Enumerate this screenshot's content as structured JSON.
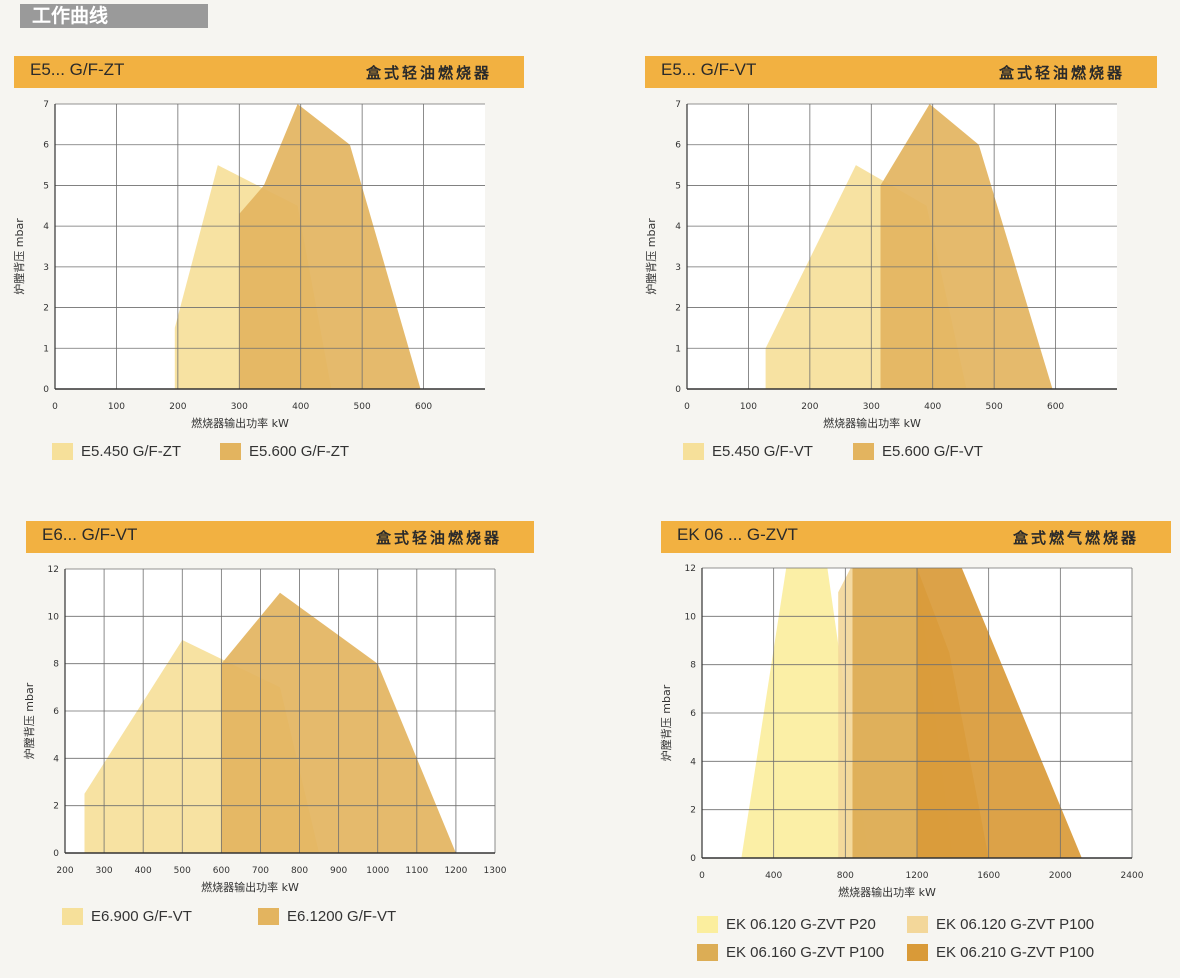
{
  "page_title": "工作曲线",
  "colors": {
    "banner": "#f2b141",
    "light_yellow": "#fbee9e",
    "pale_yellow": "#f6e09a",
    "light_gold": "#efd28b",
    "medium_gold": "#e3b45f",
    "dark_gold": "#dca74a"
  },
  "panels": [
    {
      "model": "E5... G/F-ZT",
      "type": "盒式轻油燃烧器",
      "legend": [
        {
          "name": "E5.450 G/F-ZT",
          "color": "#f6e09a"
        },
        {
          "name": "E5.600 G/F-ZT",
          "color": "#e3b45f"
        }
      ]
    },
    {
      "model": "E5... G/F-VT",
      "type": "盒式轻油燃烧器",
      "legend": [
        {
          "name": "E5.450 G/F-VT",
          "color": "#f6e09a"
        },
        {
          "name": "E5.600 G/F-VT",
          "color": "#e3b45f"
        }
      ]
    },
    {
      "model": "E6... G/F-VT",
      "type": "盒式轻油燃烧器",
      "legend": [
        {
          "name": "E6.900 G/F-VT",
          "color": "#f6e09a"
        },
        {
          "name": "E6.1200 G/F-VT",
          "color": "#e3b45f"
        }
      ]
    },
    {
      "model": "EK 06 ... G-ZVT",
      "type": "盒式燃气燃烧器",
      "legend": [
        {
          "name": "EK 06.120 G-ZVT P20",
          "color": "#fbee9e"
        },
        {
          "name": "EK 06.120 G-ZVT P100",
          "color": "#f3d79a"
        },
        {
          "name": "EK 06.160 G-ZVT P100",
          "color": "#dcad55"
        },
        {
          "name": "EK 06.210 G-ZVT P100",
          "color": "#d99a38"
        }
      ]
    }
  ],
  "chart_data": [
    {
      "type": "area",
      "xlabel": "燃烧器输出功率 kW",
      "ylabel": "炉膛背压 mbar",
      "xlim": [
        0,
        700
      ],
      "ylim": [
        0,
        7
      ],
      "xticks": [
        0,
        100,
        200,
        300,
        400,
        500,
        600
      ],
      "yticks": [
        0,
        1,
        2,
        3,
        4,
        5,
        6,
        7
      ],
      "grid": true,
      "series": [
        {
          "name": "E5.450 G/F-ZT",
          "color": "#f6e09a",
          "points": [
            [
              195,
              0
            ],
            [
              195,
              1.5
            ],
            [
              265,
              5.5
            ],
            [
              395,
              4.5
            ],
            [
              450,
              0
            ]
          ]
        },
        {
          "name": "E5.600 G/F-ZT",
          "color": "#e3b45f",
          "points": [
            [
              300,
              0
            ],
            [
              300,
              4.3
            ],
            [
              340,
              5
            ],
            [
              395,
              7
            ],
            [
              480,
              6
            ],
            [
              595,
              0
            ]
          ]
        }
      ]
    },
    {
      "type": "area",
      "xlabel": "燃烧器输出功率 kW",
      "ylabel": "炉膛背压 mbar",
      "xlim": [
        0,
        700
      ],
      "ylim": [
        0,
        7
      ],
      "xticks": [
        0,
        100,
        200,
        300,
        400,
        500,
        600
      ],
      "yticks": [
        0,
        1,
        2,
        3,
        4,
        5,
        6,
        7
      ],
      "grid": true,
      "series": [
        {
          "name": "E5.450 G/F-VT",
          "color": "#f6e09a",
          "points": [
            [
              128,
              0
            ],
            [
              128,
              1
            ],
            [
              275,
              5.5
            ],
            [
              390,
              4.5
            ],
            [
              455,
              0
            ]
          ]
        },
        {
          "name": "E5.600 G/F-VT",
          "color": "#e3b45f",
          "points": [
            [
              315,
              0
            ],
            [
              315,
              5
            ],
            [
              395,
              7
            ],
            [
              475,
              6
            ],
            [
              595,
              0
            ]
          ]
        }
      ]
    },
    {
      "type": "area",
      "xlabel": "燃烧器输出功率 kW",
      "ylabel": "炉膛背压 mbar",
      "xlim": [
        200,
        1300
      ],
      "ylim": [
        0,
        12
      ],
      "xticks": [
        200,
        300,
        400,
        500,
        600,
        700,
        800,
        900,
        1000,
        1100,
        1200,
        1300
      ],
      "yticks": [
        0,
        2,
        4,
        6,
        8,
        10,
        12
      ],
      "grid": true,
      "series": [
        {
          "name": "E6.900 G/F-VT",
          "color": "#f6e09a",
          "points": [
            [
              250,
              0
            ],
            [
              250,
              2.5
            ],
            [
              500,
              9
            ],
            [
              750,
              7
            ],
            [
              850,
              0
            ]
          ]
        },
        {
          "name": "E6.1200 G/F-VT",
          "color": "#e3b45f",
          "points": [
            [
              600,
              0
            ],
            [
              600,
              8
            ],
            [
              750,
              11
            ],
            [
              1000,
              8
            ],
            [
              1200,
              0
            ]
          ]
        }
      ]
    },
    {
      "type": "area",
      "xlabel": "燃烧器输出功率 kW",
      "ylabel": "炉膛背压 mbar",
      "xlim": [
        0,
        2400
      ],
      "ylim": [
        0,
        12
      ],
      "xticks": [
        0,
        400,
        800,
        1200,
        1600,
        2000,
        2400
      ],
      "yticks": [
        0,
        2,
        4,
        6,
        8,
        10,
        12
      ],
      "grid": true,
      "series": [
        {
          "name": "EK 06.120 G-ZVT P20",
          "color": "#fbee9e",
          "points": [
            [
              220,
              0
            ],
            [
              470,
              12
            ],
            [
              700,
              12
            ],
            [
              930,
              0
            ]
          ]
        },
        {
          "name": "EK 06.120 G-ZVT P100",
          "color": "#f3d79a",
          "points": [
            [
              760,
              0
            ],
            [
              760,
              11
            ],
            [
              830,
              12
            ],
            [
              1200,
              12
            ],
            [
              1400,
              0
            ]
          ]
        },
        {
          "name": "EK 06.160 G-ZVT P100",
          "color": "#dcad55",
          "points": [
            [
              840,
              0
            ],
            [
              840,
              12
            ],
            [
              1200,
              12
            ],
            [
              1380,
              8.5
            ],
            [
              1600,
              0
            ]
          ]
        },
        {
          "name": "EK 06.210 G-ZVT P100",
          "color": "#d99a38",
          "points": [
            [
              1200,
              0
            ],
            [
              1200,
              12
            ],
            [
              1450,
              12
            ],
            [
              2120,
              0
            ]
          ]
        }
      ]
    }
  ]
}
